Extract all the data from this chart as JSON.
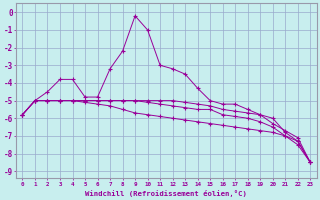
{
  "xlabel": "Windchill (Refroidissement éolien,°C)",
  "background_color": "#c8eeee",
  "grid_color": "#99aacc",
  "line_color": "#990099",
  "spine_color": "#9999aa",
  "xlim": [
    -0.5,
    23.5
  ],
  "ylim": [
    -9.4,
    0.5
  ],
  "yticks": [
    0,
    -1,
    -2,
    -3,
    -4,
    -5,
    -6,
    -7,
    -8,
    -9
  ],
  "xticks": [
    0,
    1,
    2,
    3,
    4,
    5,
    6,
    7,
    8,
    9,
    10,
    11,
    12,
    13,
    14,
    15,
    16,
    17,
    18,
    19,
    20,
    21,
    22,
    23
  ],
  "series": [
    {
      "x": [
        0,
        1,
        2,
        3,
        4,
        5,
        6,
        7,
        8,
        9,
        10,
        11,
        12,
        13,
        14,
        15,
        16,
        17,
        18,
        19,
        20,
        21,
        22,
        23
      ],
      "y": [
        -5.8,
        -5.0,
        -5.0,
        -5.0,
        -5.0,
        -5.0,
        -5.0,
        -5.0,
        -5.0,
        -5.0,
        -5.0,
        -5.0,
        -5.0,
        -5.1,
        -5.2,
        -5.3,
        -5.5,
        -5.6,
        -5.7,
        -5.8,
        -6.0,
        -6.8,
        -7.3,
        -8.5
      ]
    },
    {
      "x": [
        0,
        1,
        2,
        3,
        4,
        5,
        6,
        7,
        8,
        9,
        10,
        11,
        12,
        13,
        14,
        15,
        16,
        17,
        18,
        19,
        20,
        21,
        22,
        23
      ],
      "y": [
        -5.8,
        -5.0,
        -5.0,
        -5.0,
        -5.0,
        -5.0,
        -5.0,
        -5.0,
        -5.0,
        -5.0,
        -5.1,
        -5.2,
        -5.3,
        -5.4,
        -5.5,
        -5.5,
        -5.8,
        -5.9,
        -6.0,
        -6.2,
        -6.5,
        -7.0,
        -7.3,
        -8.5
      ]
    },
    {
      "x": [
        0,
        1,
        2,
        3,
        4,
        5,
        6,
        7,
        8,
        9,
        10,
        11,
        12,
        13,
        14,
        15,
        16,
        17,
        18,
        19,
        20,
        21,
        22,
        23
      ],
      "y": [
        -5.8,
        -5.0,
        -5.0,
        -5.0,
        -5.0,
        -5.1,
        -5.2,
        -5.3,
        -5.5,
        -5.7,
        -5.8,
        -5.9,
        -6.0,
        -6.1,
        -6.2,
        -6.3,
        -6.4,
        -6.5,
        -6.6,
        -6.7,
        -6.8,
        -7.0,
        -7.5,
        -8.5
      ]
    },
    {
      "x": [
        0,
        1,
        2,
        3,
        4,
        5,
        6,
        7,
        8,
        9,
        10,
        11,
        12,
        13,
        14,
        15,
        16,
        17,
        18,
        19,
        20,
        21,
        22,
        23
      ],
      "y": [
        -5.8,
        -5.0,
        -4.5,
        -3.8,
        -3.8,
        -4.8,
        -4.8,
        -3.2,
        -2.2,
        -0.2,
        -1.0,
        -3.0,
        -3.2,
        -3.5,
        -4.3,
        -5.0,
        -5.2,
        -5.2,
        -5.5,
        -5.8,
        -6.3,
        -6.7,
        -7.1,
        -8.5
      ]
    }
  ]
}
